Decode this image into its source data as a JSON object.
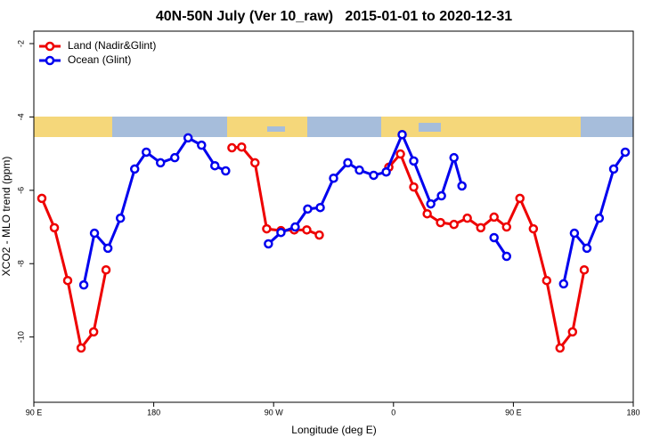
{
  "chart_data": {
    "type": "line",
    "title": "40N-50N July (Ver 10_raw)   2015-01-01 to 2020-12-31",
    "xlabel": "Longitude (deg E)",
    "ylabel": "XCO2 - MLO trend (ppm)",
    "xlim": [
      90,
      540
    ],
    "xticks": [
      {
        "value": 90,
        "label": "90 E"
      },
      180,
      {
        "value": 270,
        "label": "90 W"
      },
      {
        "value": 360,
        "label": "0"
      },
      {
        "value": 450,
        "label": "90 E"
      },
      {
        "value": 540,
        "label": "180"
      }
    ],
    "ylim": [
      -11.78,
      -1.66
    ],
    "yticks": [
      -2,
      -4,
      -6,
      -8,
      -10
    ],
    "legend": "top-left",
    "series": [
      {
        "name": "Land (Nadir&Glint)",
        "color": "#ee0000",
        "x": [
          96.0,
          105.4,
          115.4,
          125.5,
          134.9,
          144.2,
          null,
          238.7,
          246,
          256,
          264.8,
          275.5,
          285.5,
          294.9,
          304.3,
          null,
          356.5,
          365.2,
          375.2,
          385.3,
          395.3,
          405.4,
          415.4,
          425.5,
          435.5,
          444.9,
          454.9,
          465,
          475,
          485,
          494.4,
          503.2
        ],
        "values": [
          -6.22,
          -7.02,
          -8.46,
          -10.3,
          -9.86,
          -8.17,
          null,
          -4.84,
          -4.82,
          -5.25,
          -7.05,
          -7.1,
          -7.08,
          -7.08,
          -7.22,
          null,
          -5.37,
          -5.01,
          -5.91,
          -6.64,
          -6.88,
          -6.93,
          -6.76,
          -7.02,
          -6.73,
          -7.0,
          -6.22,
          -7.05,
          -8.46,
          -10.3,
          -9.86,
          -8.17
        ]
      },
      {
        "name": "Ocean (Glint)",
        "color": "#0000ee",
        "x": [
          127.5,
          135.5,
          145.6,
          155,
          165.7,
          174.4,
          185.1,
          195.8,
          205.8,
          215.9,
          225.9,
          234,
          null,
          266.1,
          275.5,
          286.2,
          295.6,
          305,
          315,
          325.7,
          334.4,
          345.1,
          354.5,
          366.5,
          375.2,
          388,
          396,
          405.4,
          411.4,
          null,
          435.5,
          444.9,
          null,
          487.7,
          495.8,
          505.2,
          514.5,
          525.3,
          534
        ],
        "values": [
          -8.58,
          -7.17,
          -7.58,
          -6.76,
          -5.42,
          -4.96,
          -5.25,
          -5.11,
          -4.57,
          -4.77,
          -5.33,
          -5.47,
          null,
          -7.46,
          -7.15,
          -7.0,
          -6.51,
          -6.47,
          -5.67,
          -5.25,
          -5.45,
          -5.59,
          -5.5,
          -4.48,
          -5.2,
          -6.37,
          -6.15,
          -5.11,
          -5.88,
          null,
          -7.29,
          -7.8,
          null,
          -8.55,
          -7.17,
          -7.58,
          -6.76,
          -5.42,
          -4.96
        ]
      }
    ]
  }
}
